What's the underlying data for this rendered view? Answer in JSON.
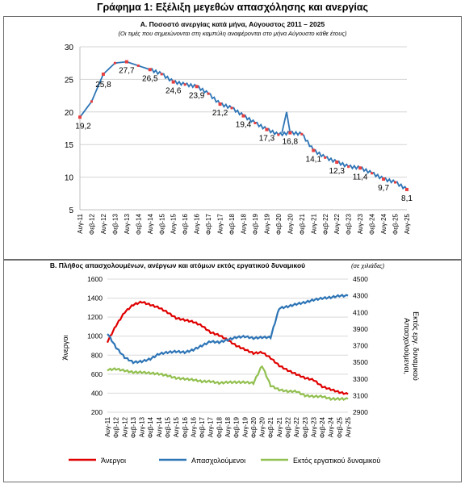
{
  "title": "Γράφημα 1: Εξέλιξη μεγεθών απασχόλησης και ανεργίας",
  "chart_data": [
    {
      "type": "line",
      "title": "Α. Ποσοστό ανεργίας κατά μήνα, Αύγουστος 2011 – 2025",
      "subtitle": "(Οι τιμές που σημειώνονται στη καμπύλη αναφέρονται στο μήνα Αύγουστο κάθε έτους)",
      "ylim": [
        5,
        30
      ],
      "yticks": [
        5,
        10,
        15,
        20,
        25,
        30
      ],
      "categories": [
        "Αυγ-11",
        "Φεβ-12",
        "Αυγ-12",
        "Φεβ-13",
        "Αυγ-13",
        "Φεβ-14",
        "Αυγ-14",
        "Φεβ-15",
        "Αυγ-15",
        "Φεβ-16",
        "Αυγ-16",
        "Φεβ-17",
        "Αυγ-17",
        "Φεβ-18",
        "Αυγ-18",
        "Φεβ-19",
        "Αυγ-19",
        "Φεβ-20",
        "Αυγ-20",
        "Φεβ-21",
        "Αυγ-21",
        "Φεβ-22",
        "Αυγ-22",
        "Φεβ-23",
        "Αυγ-23",
        "Φεβ-24",
        "Αυγ-24",
        "Φεβ-25",
        "Αυγ-25"
      ],
      "series": [
        {
          "color": "#2e75b6",
          "values": [
            19.2,
            21.6,
            25.8,
            27.5,
            27.7,
            27.1,
            26.5,
            25.8,
            24.6,
            24.2,
            23.9,
            22.8,
            21.2,
            20.6,
            19.4,
            18.3,
            17.3,
            16.5,
            16.8,
            16.6,
            14.1,
            13.0,
            12.3,
            11.6,
            11.4,
            10.6,
            9.7,
            9.2,
            8.1
          ]
        }
      ],
      "annotations": [
        {
          "category": "Αυγ-11",
          "label": "19,2"
        },
        {
          "category": "Αυγ-12",
          "label": "25,8"
        },
        {
          "category": "Αυγ-13",
          "label": "27,7"
        },
        {
          "category": "Αυγ-14",
          "label": "26,5"
        },
        {
          "category": "Αυγ-15",
          "label": "24,6"
        },
        {
          "category": "Αυγ-16",
          "label": "23,9"
        },
        {
          "category": "Αυγ-17",
          "label": "21,2"
        },
        {
          "category": "Αυγ-18",
          "label": "19,4"
        },
        {
          "category": "Αυγ-19",
          "label": "17,3"
        },
        {
          "category": "Αυγ-20",
          "label": "16,8"
        },
        {
          "category": "Αυγ-21",
          "label": "14,1"
        },
        {
          "category": "Αυγ-22",
          "label": "12,3"
        },
        {
          "category": "Αυγ-23",
          "label": "11,4"
        },
        {
          "category": "Αυγ-24",
          "label": "9,7"
        },
        {
          "category": "Αυγ-25",
          "label": "8,1"
        }
      ],
      "marker_color": "#e84040",
      "grid": true
    },
    {
      "type": "line",
      "title": "Β. Πλήθος απασχολουμένων, ανέργων και ατόμων εκτός εργατικού δυναμικού",
      "subtitle": "(σε χιλιάδες)",
      "ylabel": "Άνεργοι",
      "y2label": "Απασχολούμενοι, Εκτός εργ. δυναμικού",
      "ylim": [
        200,
        1600
      ],
      "yticks": [
        200,
        400,
        600,
        800,
        1000,
        1200,
        1400,
        1600
      ],
      "y2lim": [
        2900,
        4500
      ],
      "y2ticks": [
        2900,
        3100,
        3300,
        3500,
        3700,
        3900,
        4100,
        4300,
        4500
      ],
      "categories": [
        "Αυγ-11",
        "Φεβ-12",
        "Αυγ-12",
        "Φεβ-13",
        "Αυγ-13",
        "Φεβ-14",
        "Αυγ-14",
        "Φεβ-15",
        "Αυγ-15",
        "Φεβ-16",
        "Αυγ-16",
        "Φεβ-17",
        "Αυγ-17",
        "Φεβ-18",
        "Αυγ-18",
        "Φεβ-19",
        "Αυγ-19",
        "Φεβ-20",
        "Αυγ-20",
        "Φεβ-21",
        "Αυγ-21",
        "Φεβ-22",
        "Αυγ-22",
        "Φεβ-23",
        "Αυγ-23",
        "Φεβ-24",
        "Αυγ-24",
        "Φεβ-25",
        "Αυγ-25"
      ],
      "series": [
        {
          "name": "Άνεργοι",
          "axis": "left",
          "color": "#e00000",
          "values": [
            940,
            1110,
            1250,
            1330,
            1360,
            1330,
            1300,
            1250,
            1190,
            1170,
            1150,
            1110,
            1040,
            1010,
            960,
            900,
            860,
            820,
            830,
            770,
            690,
            640,
            600,
            560,
            540,
            470,
            440,
            410,
            390
          ]
        },
        {
          "name": "Απασχολούμενοι",
          "axis": "right",
          "color": "#2e75b6",
          "values": [
            3850,
            3680,
            3560,
            3500,
            3510,
            3540,
            3600,
            3620,
            3630,
            3620,
            3650,
            3700,
            3750,
            3740,
            3770,
            3800,
            3810,
            3790,
            3800,
            3800,
            4150,
            4170,
            4200,
            4220,
            4250,
            4270,
            4280,
            4300,
            4300
          ]
        },
        {
          "name": "Εκτός εργατικού δυναμικού",
          "axis": "right",
          "color": "#92c050",
          "values": [
            3410,
            3420,
            3400,
            3380,
            3380,
            3370,
            3360,
            3340,
            3310,
            3300,
            3290,
            3270,
            3270,
            3250,
            3260,
            3260,
            3260,
            3250,
            3460,
            3220,
            3170,
            3150,
            3150,
            3100,
            3090,
            3090,
            3060,
            3060,
            3060
          ]
        }
      ],
      "legend": "bottom"
    }
  ]
}
